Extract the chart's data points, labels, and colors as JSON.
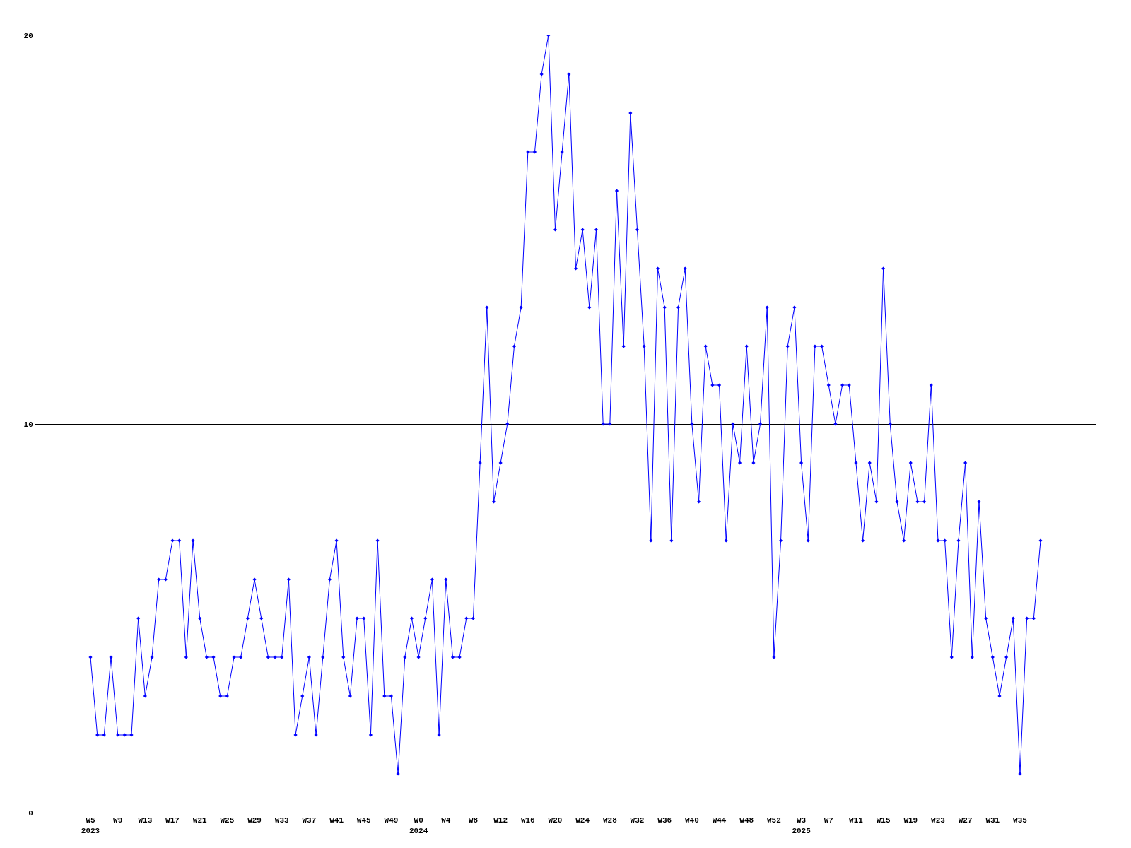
{
  "chart_data": {
    "type": "line",
    "categories": [
      "W5\n2023",
      null,
      null,
      null,
      "W9",
      null,
      null,
      null,
      "W13",
      null,
      null,
      null,
      "W17",
      null,
      null,
      null,
      "W21",
      null,
      null,
      null,
      "W25",
      null,
      null,
      null,
      "W29",
      null,
      null,
      null,
      "W33",
      null,
      null,
      null,
      "W37",
      null,
      null,
      null,
      "W41",
      null,
      null,
      null,
      "W45",
      null,
      null,
      null,
      "W49",
      null,
      null,
      null,
      "W0\n2024",
      null,
      null,
      null,
      "W4",
      null,
      null,
      null,
      "W8",
      null,
      null,
      null,
      "W12",
      null,
      null,
      null,
      "W16",
      null,
      null,
      null,
      "W20",
      null,
      null,
      null,
      "W24",
      null,
      null,
      null,
      "W28",
      null,
      null,
      null,
      "W32",
      null,
      null,
      null,
      "W36",
      null,
      null,
      null,
      "W40",
      null,
      null,
      null,
      "W44",
      null,
      null,
      null,
      "W48",
      null,
      null,
      null,
      "W52",
      null,
      null,
      null,
      "W3\n2025",
      null,
      null,
      null,
      "W7",
      null,
      null,
      null,
      "W11",
      null,
      null,
      null,
      "W15",
      null,
      null,
      null,
      "W19",
      null,
      null,
      null,
      "W23",
      null,
      null,
      null,
      "W27",
      null,
      null,
      null,
      "W31",
      null,
      null,
      null,
      "W35",
      null,
      null,
      null
    ],
    "series": [
      {
        "color": "#0000ff",
        "values": [
          4,
          2,
          2,
          4,
          2,
          2,
          2,
          5,
          3,
          4,
          6,
          6,
          7,
          7,
          4,
          7,
          5,
          4,
          4,
          3,
          3,
          4,
          4,
          5,
          6,
          5,
          4,
          4,
          4,
          6,
          2,
          3,
          4,
          2,
          4,
          6,
          7,
          4,
          3,
          5,
          5,
          2,
          7,
          3,
          3,
          1,
          4,
          5,
          4,
          5,
          6,
          2,
          6,
          4,
          4,
          5,
          5,
          9,
          13,
          8,
          9,
          10,
          12,
          13,
          17,
          17,
          19,
          20,
          15,
          17,
          19,
          14,
          15,
          13,
          15,
          10,
          10,
          16,
          12,
          18,
          15,
          12,
          7,
          14,
          13,
          7,
          13,
          14,
          10,
          8,
          12,
          11,
          11,
          7,
          10,
          9,
          12,
          9,
          10,
          13,
          4,
          7,
          12,
          13,
          9,
          7,
          12,
          12,
          11,
          10,
          11,
          11,
          9,
          7,
          9,
          8,
          14,
          10,
          8,
          7,
          9,
          8,
          8,
          11,
          7,
          7,
          4,
          7,
          9,
          4,
          8,
          5,
          4,
          3,
          4,
          5,
          1,
          5,
          5,
          7
        ]
      }
    ],
    "ylim": [
      0,
      20
    ],
    "yticks": [
      0,
      10,
      20
    ],
    "grid": "y",
    "marker": "diamond",
    "line_style": "solid"
  }
}
